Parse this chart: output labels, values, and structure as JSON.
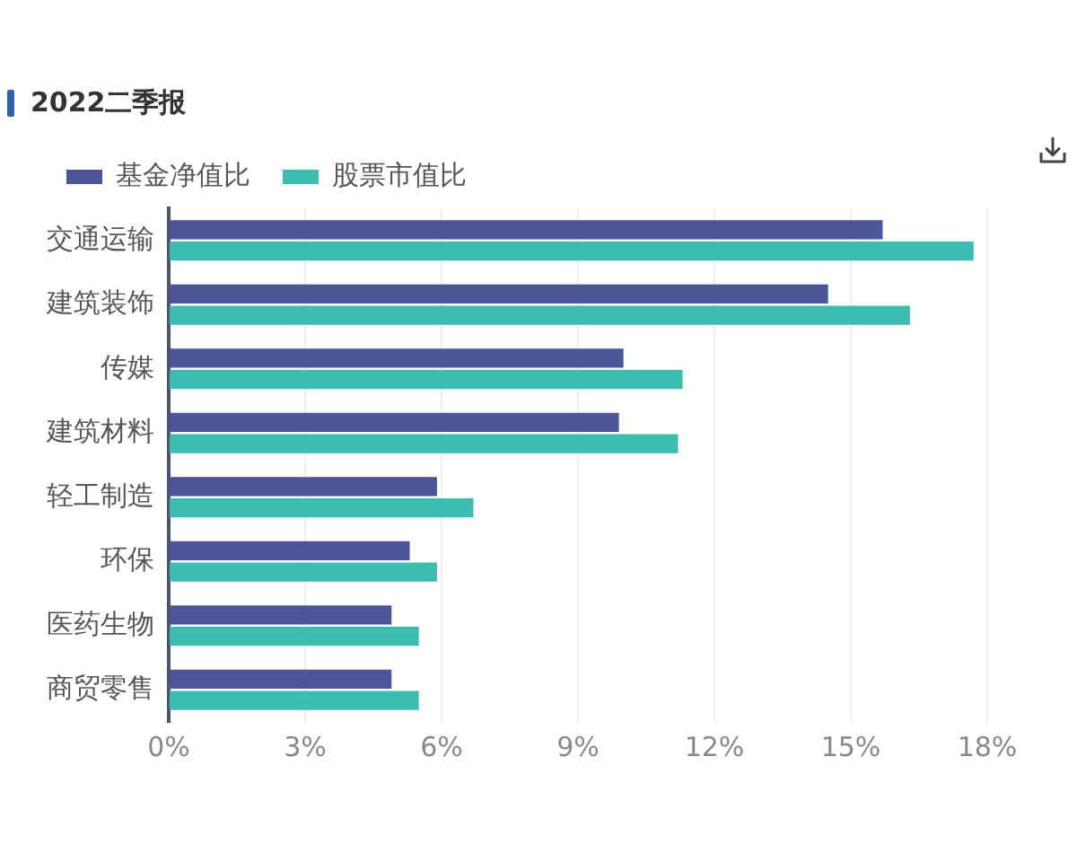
{
  "chart_data": {
    "type": "bar",
    "title": "2022二季报",
    "orientation": "horizontal",
    "categories": [
      "交通运输",
      "建筑装饰",
      "传媒",
      "建筑材料",
      "轻工制造",
      "环保",
      "医药生物",
      "商贸零售"
    ],
    "series": [
      {
        "name": "基金净值比",
        "color": "#4b5598",
        "values": [
          15.7,
          14.5,
          10.0,
          9.9,
          5.9,
          5.3,
          4.9,
          4.9
        ]
      },
      {
        "name": "股票市值比",
        "color": "#3dbdb0",
        "values": [
          17.7,
          16.3,
          11.3,
          11.2,
          6.7,
          5.9,
          5.5,
          5.5
        ]
      }
    ],
    "xlim": [
      0,
      18
    ],
    "xticks": [
      {
        "value": 0,
        "label": "0%"
      },
      {
        "value": 3,
        "label": "3%"
      },
      {
        "value": 6,
        "label": "6%"
      },
      {
        "value": 9,
        "label": "9%"
      },
      {
        "value": 12,
        "label": "12%"
      },
      {
        "value": 15,
        "label": "15%"
      },
      {
        "value": 18,
        "label": "18%"
      }
    ],
    "grid": "x",
    "legend": "top left"
  }
}
